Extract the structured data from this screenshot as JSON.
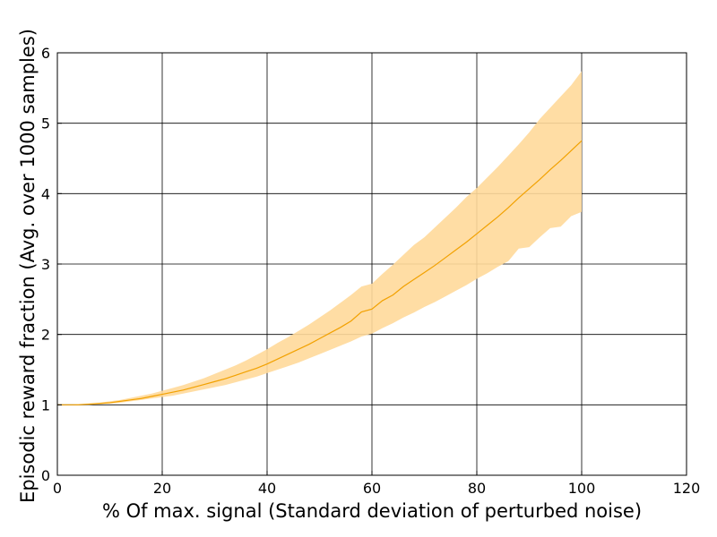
{
  "chart_data": {
    "type": "area",
    "title": "",
    "xlabel": "% Of max. signal (Standard deviation of perturbed noise)",
    "ylabel": "Episodic reward fraction (Avg. over 1000 samples)",
    "xlim": [
      0,
      120
    ],
    "ylim": [
      0,
      6
    ],
    "xticks": [
      "0",
      "20",
      "40",
      "60",
      "80",
      "100",
      "120"
    ],
    "yticks": [
      "0",
      "1",
      "2",
      "3",
      "4",
      "5",
      "6"
    ],
    "grid": true,
    "legend": "none",
    "colors": {
      "line": "#f2a100",
      "band": "#ffd99a"
    },
    "series": [
      {
        "x": [
          0,
          2,
          4,
          6,
          8,
          10,
          12,
          14,
          16,
          18,
          20,
          22,
          24,
          26,
          28,
          30,
          32,
          34,
          36,
          38,
          40,
          42,
          44,
          46,
          48,
          50,
          52,
          54,
          56,
          58,
          60,
          62,
          64,
          66,
          68,
          70,
          72,
          74,
          76,
          78,
          80,
          82,
          84,
          86,
          88,
          90,
          92,
          94,
          96,
          98,
          100
        ],
        "y": [
          1.0,
          1.0,
          1.0,
          1.01,
          1.02,
          1.03,
          1.05,
          1.07,
          1.09,
          1.12,
          1.15,
          1.18,
          1.21,
          1.25,
          1.29,
          1.33,
          1.37,
          1.42,
          1.47,
          1.52,
          1.58,
          1.65,
          1.72,
          1.79,
          1.86,
          1.94,
          2.02,
          2.1,
          2.19,
          2.32,
          2.36,
          2.48,
          2.56,
          2.68,
          2.78,
          2.88,
          2.98,
          3.09,
          3.2,
          3.31,
          3.43,
          3.55,
          3.67,
          3.8,
          3.94,
          4.07,
          4.2,
          4.34,
          4.47,
          4.61,
          4.75
        ],
        "y_upper": [
          1.0,
          1.0,
          1.01,
          1.02,
          1.03,
          1.05,
          1.07,
          1.1,
          1.13,
          1.16,
          1.2,
          1.24,
          1.28,
          1.33,
          1.38,
          1.44,
          1.5,
          1.56,
          1.63,
          1.71,
          1.79,
          1.88,
          1.96,
          2.05,
          2.14,
          2.24,
          2.34,
          2.45,
          2.56,
          2.68,
          2.72,
          2.86,
          2.99,
          3.13,
          3.27,
          3.38,
          3.52,
          3.66,
          3.8,
          3.95,
          4.08,
          4.23,
          4.38,
          4.54,
          4.7,
          4.87,
          5.06,
          5.22,
          5.38,
          5.54,
          5.74
        ],
        "y_lower": [
          1.0,
          1.0,
          1.0,
          1.0,
          1.01,
          1.02,
          1.03,
          1.05,
          1.07,
          1.09,
          1.11,
          1.13,
          1.16,
          1.19,
          1.22,
          1.25,
          1.28,
          1.32,
          1.36,
          1.4,
          1.45,
          1.5,
          1.55,
          1.6,
          1.66,
          1.72,
          1.78,
          1.84,
          1.9,
          1.97,
          2.01,
          2.09,
          2.16,
          2.24,
          2.31,
          2.39,
          2.46,
          2.54,
          2.62,
          2.7,
          2.79,
          2.87,
          2.96,
          3.04,
          3.22,
          3.24,
          3.38,
          3.51,
          3.53,
          3.68,
          3.74
        ]
      }
    ]
  }
}
